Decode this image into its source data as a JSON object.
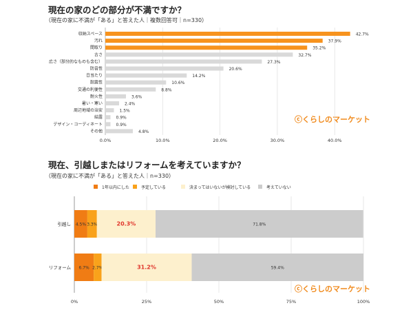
{
  "chart_data": [
    {
      "type": "bar",
      "orientation": "horizontal",
      "title": "現在の家のどの部分が不満ですか？",
      "subtitle": "（現在の家に不満が「ある」と答えた人｜複数回答可｜n=330）",
      "categories": [
        "収納スペース",
        "汚れ",
        "間取り",
        "古さ",
        "広さ（部分的なものも含む）",
        "防音性",
        "日当たり",
        "耐震性",
        "交通の利便性",
        "耐火性",
        "暑い・寒い",
        "周辺地域の治安",
        "結露",
        "デザイン・コーディネート",
        "その他"
      ],
      "values": [
        42.7,
        37.9,
        35.2,
        32.7,
        27.3,
        20.6,
        14.2,
        10.6,
        8.8,
        3.6,
        2.4,
        1.5,
        0.9,
        0.9,
        4.8
      ],
      "highlight_top": 3,
      "colors": {
        "highlight": "#f7931e",
        "other": "#d9d9d9"
      },
      "xlim": [
        0,
        45
      ],
      "xticks": [
        "0.0%",
        "10.0%",
        "20.0%",
        "30.0%",
        "40.0%"
      ],
      "xtick_values": [
        0,
        10,
        20,
        30,
        40
      ],
      "grid": true
    },
    {
      "type": "bar",
      "orientation": "horizontal",
      "stacked": true,
      "title": "現在、引越しまたはリフォームを考えていますか？",
      "subtitle": "（現在の家に不満が「ある」と答えた人｜n=330）",
      "categories": [
        "引越し",
        "リフォーム"
      ],
      "series": [
        {
          "name": "1年以内にした",
          "values": [
            4.5,
            6.7
          ],
          "color": "#f07c14"
        },
        {
          "name": "予定している",
          "values": [
            3.3,
            2.7
          ],
          "color": "#f9a21b"
        },
        {
          "name": "決まってはいないが検討している",
          "values": [
            20.3,
            31.2
          ],
          "color": "#fdf0cd"
        },
        {
          "name": "考えていない",
          "values": [
            71.8,
            59.4
          ],
          "color": "#cccccc"
        }
      ],
      "xlim": [
        0,
        100
      ],
      "xticks": [
        "0%",
        "25%",
        "50%",
        "75%",
        "100%"
      ],
      "xtick_values": [
        0,
        25,
        50,
        75,
        100
      ],
      "grid": true,
      "legend": "top"
    }
  ],
  "logo": "くらしのマーケット"
}
